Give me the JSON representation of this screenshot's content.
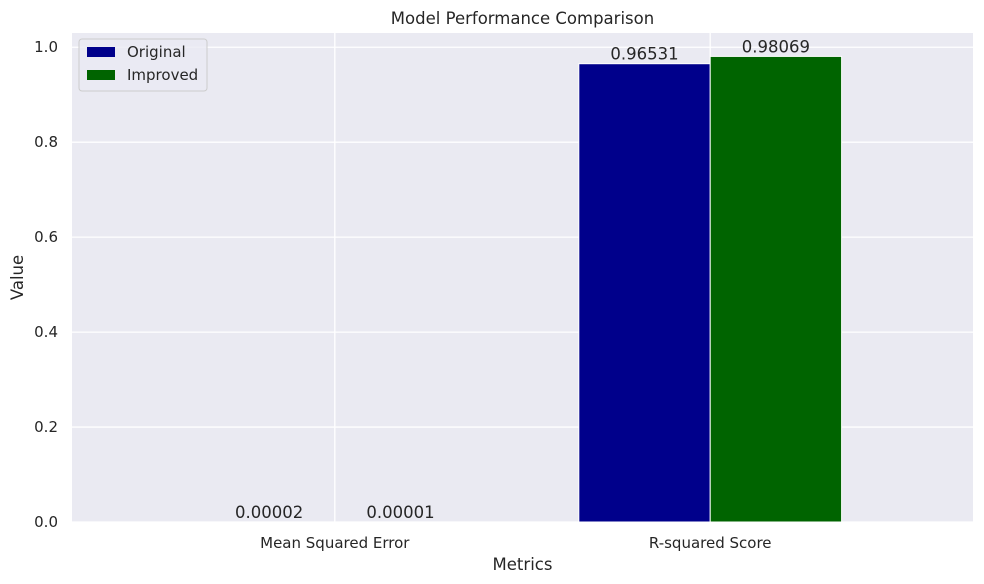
{
  "chart_data": {
    "type": "bar",
    "title": "Model Performance Comparison",
    "xlabel": "Metrics",
    "ylabel": "Value",
    "categories": [
      "Mean Squared Error",
      "R-squared Score"
    ],
    "series": [
      {
        "name": "Original",
        "color": "#00008b",
        "values": [
          2e-05,
          0.96531
        ],
        "labels": [
          "0.00002",
          "0.96531"
        ]
      },
      {
        "name": "Improved",
        "color": "#006400",
        "values": [
          1e-05,
          0.98069
        ],
        "labels": [
          "0.00001",
          "0.98069"
        ]
      }
    ],
    "ylim": [
      0,
      1.03
    ],
    "yticks": [
      0.0,
      0.2,
      0.4,
      0.6,
      0.8,
      1.0
    ],
    "ytick_labels": [
      "0.0",
      "0.2",
      "0.4",
      "0.6",
      "0.8",
      "1.0"
    ],
    "grid": true,
    "legend_position": "top-left",
    "background_color": "#eaeaf2",
    "grid_color": "#ffffff"
  }
}
